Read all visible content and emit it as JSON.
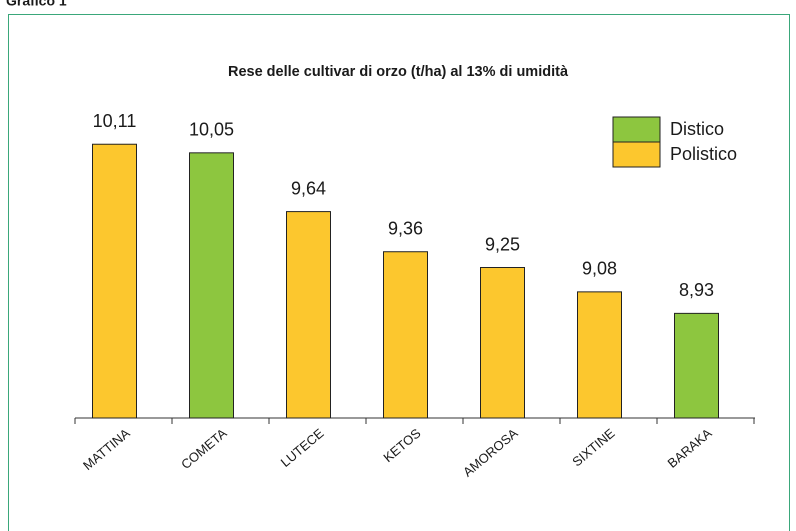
{
  "header": {
    "title": "Grafico 1"
  },
  "chart_data": {
    "type": "bar",
    "title": "Rese delle cultivar di orzo (t/ha) al 13% di umidità",
    "categories": [
      "MATTINA",
      "COMETA",
      "LUTECE",
      "KETOS",
      "AMOROSA",
      "SIXTINE",
      "BARAKA"
    ],
    "series": [
      {
        "name": "Distico",
        "color": "#8dc63f",
        "values": [
          null,
          10.05,
          null,
          null,
          null,
          null,
          8.93
        ],
        "value_labels": [
          null,
          "10,05",
          null,
          null,
          null,
          null,
          "8,93"
        ]
      },
      {
        "name": "Polistico",
        "color": "#fcc72e",
        "values": [
          10.11,
          null,
          9.64,
          9.36,
          9.25,
          9.08,
          null
        ],
        "value_labels": [
          "10,11",
          null,
          "9,64",
          "9,36",
          "9,25",
          "9,08",
          null
        ]
      }
    ],
    "ylim": [
      8.2,
      10.6
    ],
    "legend": "top-right"
  }
}
